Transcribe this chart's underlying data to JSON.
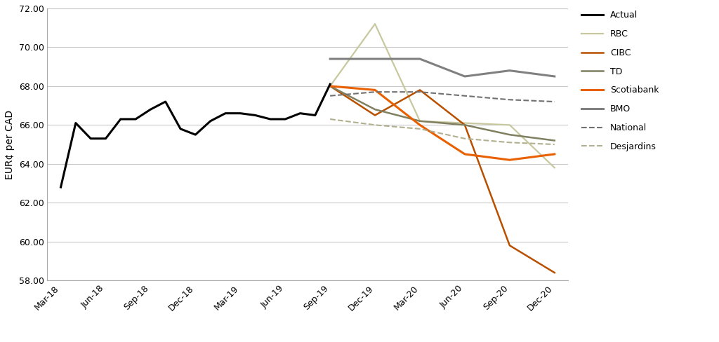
{
  "ylabel": "EUR¢ per CAD",
  "ylim": [
    58.0,
    72.0
  ],
  "yticks": [
    58.0,
    60.0,
    62.0,
    64.0,
    66.0,
    68.0,
    70.0,
    72.0
  ],
  "x_labels": [
    "Mar-18",
    "Jun-18",
    "Sep-18",
    "Dec-18",
    "Mar-19",
    "Jun-19",
    "Sep-19",
    "Dec-19",
    "Mar-20",
    "Jun-20",
    "Sep-20",
    "Dec-20"
  ],
  "actual_x": [
    0,
    0.333,
    0.667,
    1.0,
    1.333,
    1.667,
    2.0,
    2.333,
    2.667,
    3.0,
    3.333,
    3.667,
    4.0,
    4.333,
    4.667,
    5.0,
    5.333,
    5.667,
    6.0
  ],
  "actual_y": [
    62.8,
    66.1,
    65.3,
    65.3,
    66.3,
    66.3,
    66.8,
    67.2,
    65.8,
    65.5,
    66.2,
    66.6,
    66.6,
    66.5,
    66.3,
    66.3,
    66.6,
    66.5,
    68.1
  ],
  "series": {
    "RBC": {
      "x": [
        6,
        7,
        8,
        9,
        10,
        11
      ],
      "y": [
        68.0,
        71.2,
        66.2,
        66.1,
        66.0,
        63.8
      ],
      "color": "#c8c8a0",
      "lw": 1.6,
      "ls": "solid"
    },
    "CIBC": {
      "x": [
        6,
        7,
        8,
        9,
        10,
        11
      ],
      "y": [
        68.0,
        66.5,
        67.8,
        66.0,
        59.8,
        58.4
      ],
      "color": "#b85000",
      "lw": 1.8,
      "ls": "solid"
    },
    "TD": {
      "x": [
        6,
        7,
        8,
        9,
        10,
        11
      ],
      "y": [
        68.0,
        66.8,
        66.2,
        66.0,
        65.5,
        65.2
      ],
      "color": "#808060",
      "lw": 1.8,
      "ls": "solid"
    },
    "Scotiabank": {
      "x": [
        6,
        7,
        8,
        9,
        10,
        11
      ],
      "y": [
        68.0,
        67.8,
        66.0,
        64.5,
        64.2,
        64.5
      ],
      "color": "#e86000",
      "lw": 2.2,
      "ls": "solid"
    },
    "BMO": {
      "x": [
        6,
        7,
        8,
        9,
        10,
        11
      ],
      "y": [
        69.4,
        69.4,
        69.4,
        68.5,
        68.8,
        68.5
      ],
      "color": "#808080",
      "lw": 2.2,
      "ls": "solid"
    },
    "National": {
      "x": [
        6,
        7,
        8,
        9,
        10,
        11
      ],
      "y": [
        67.5,
        67.7,
        67.7,
        67.5,
        67.3,
        67.2
      ],
      "color": "#707070",
      "lw": 1.5,
      "ls": "dashed"
    },
    "Desjardins": {
      "x": [
        6,
        7,
        8,
        9,
        10,
        11
      ],
      "y": [
        66.3,
        66.0,
        65.8,
        65.3,
        65.1,
        65.0
      ],
      "color": "#b0b090",
      "lw": 1.5,
      "ls": "dashed"
    }
  },
  "actual_color": "#000000",
  "actual_lw": 2.2,
  "background_color": "#ffffff",
  "grid_color": "#c8c8c8",
  "legend_order": [
    "Actual",
    "RBC",
    "CIBC",
    "TD",
    "Scotiabank",
    "BMO",
    "National",
    "Desjardins"
  ]
}
